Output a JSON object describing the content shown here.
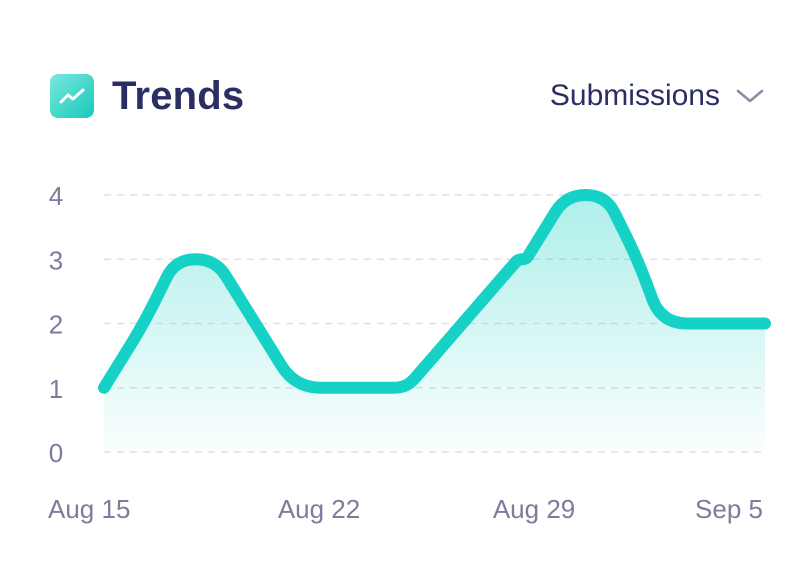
{
  "header": {
    "title": "Trends",
    "icon": "trend-up-icon",
    "metric_selector": {
      "selected": "Submissions",
      "icon": "chevron-down-icon"
    }
  },
  "colors": {
    "accent": "#16d1c5",
    "title": "#2b2e63",
    "tick": "#7b7d9c",
    "grid": "#dfe1ea"
  },
  "chart_data": {
    "type": "area",
    "title": "Trends",
    "series": [
      {
        "name": "Submissions",
        "x": [
          0,
          5,
          9,
          14,
          24,
          31,
          35,
          38,
          45,
          52,
          53,
          58,
          63,
          67,
          70,
          77,
          80,
          83
        ],
        "values": [
          1,
          2,
          3,
          3,
          1,
          1,
          1,
          1,
          2,
          3,
          3,
          4,
          4,
          3,
          2,
          2,
          2,
          2
        ]
      }
    ],
    "x_ticks": [
      {
        "value": 0,
        "label": "Aug 15"
      },
      {
        "value": 27,
        "label": "Aug 22"
      },
      {
        "value": 54,
        "label": "Aug 29"
      },
      {
        "value": 81,
        "label": "Sep 5"
      }
    ],
    "xlim": [
      0,
      83
    ],
    "ylim": [
      0,
      4
    ],
    "y_ticks": [
      0,
      1,
      2,
      3,
      4
    ],
    "grid": true,
    "legend": "none"
  }
}
